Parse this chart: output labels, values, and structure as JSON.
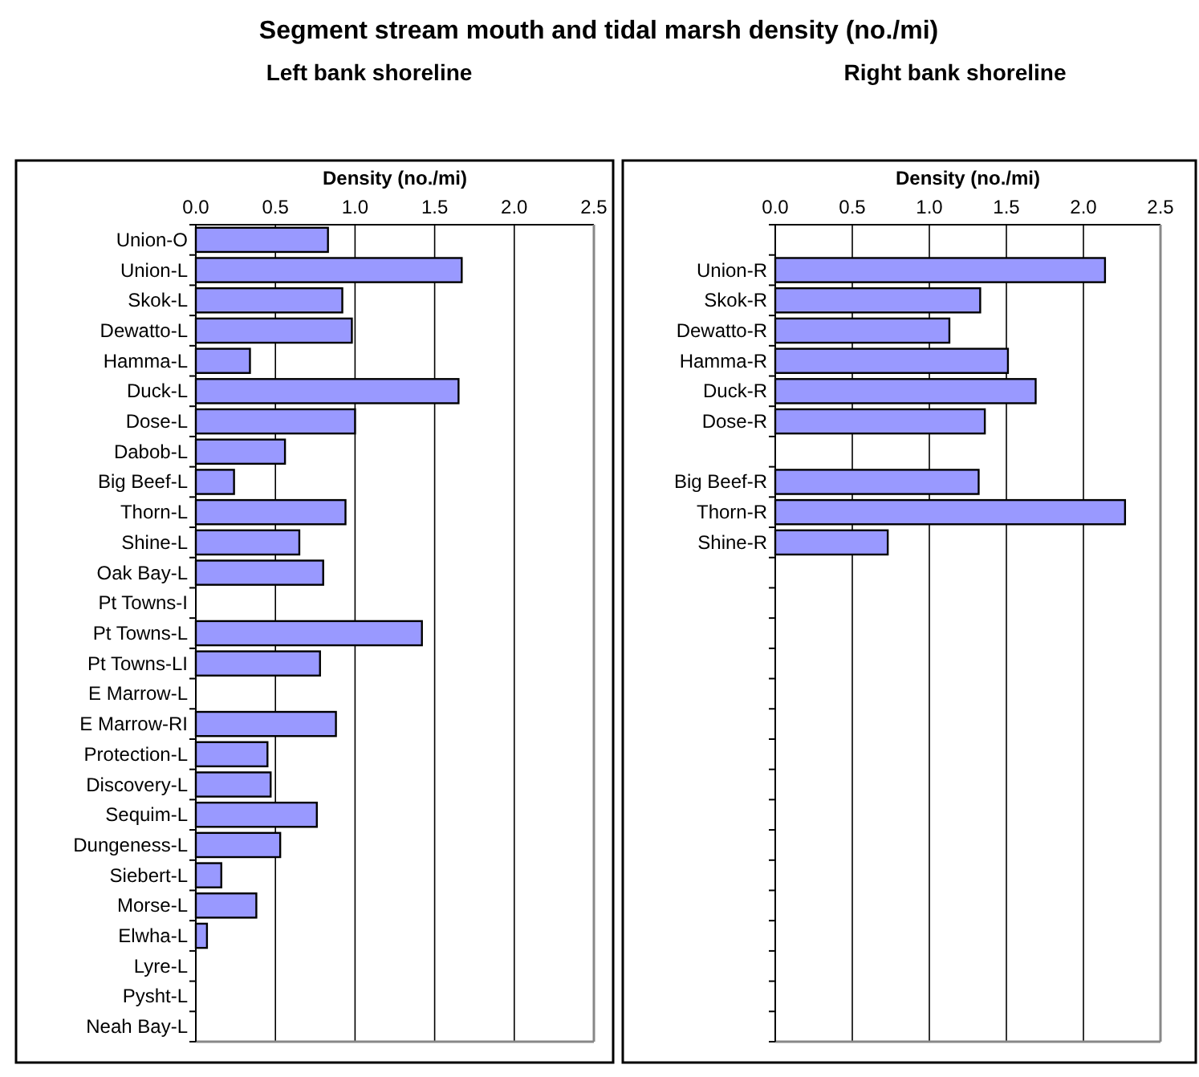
{
  "chart_data": [
    {
      "type": "bar",
      "orientation": "horizontal",
      "title": "Segment stream mouth and tidal marsh density (no./mi)",
      "subtitle": "Left bank shoreline",
      "xlabel": "Density (no./mi)",
      "categories": [
        "Union-O",
        "Union-L",
        "Skok-L",
        "Dewatto-L",
        "Hamma-L",
        "Duck-L",
        "Dose-L",
        "Dabob-L",
        "Big Beef-L",
        "Thorn-L",
        "Shine-L",
        "Oak Bay-L",
        "Pt Towns-I",
        "Pt Towns-L",
        "Pt Towns-LI",
        "E Marrow-L",
        "E Marrow-RI",
        "Protection-L",
        "Discovery-L",
        "Sequim-L",
        "Dungeness-L",
        "Siebert-L",
        "Morse-L",
        "Elwha-L",
        "Lyre-L",
        "Pysht-L",
        "Neah Bay-L"
      ],
      "values": [
        0.83,
        1.67,
        0.92,
        0.98,
        0.34,
        1.65,
        1.0,
        0.56,
        0.24,
        0.94,
        0.65,
        0.8,
        null,
        1.42,
        0.78,
        null,
        0.88,
        0.45,
        0.47,
        0.76,
        0.53,
        0.16,
        0.38,
        0.07,
        null,
        null,
        null
      ],
      "color": "#9999ff",
      "xlim": [
        0,
        2.5
      ],
      "xticks": [
        {
          "value": 0,
          "label": "0.0"
        },
        {
          "value": 0.5,
          "label": "0.5"
        },
        {
          "value": 1,
          "label": "1.0"
        },
        {
          "value": 1.5,
          "label": "1.5"
        },
        {
          "value": 2,
          "label": "2.0"
        },
        {
          "value": 2.5,
          "label": "2.5"
        }
      ],
      "grid": "x"
    },
    {
      "type": "bar",
      "orientation": "horizontal",
      "subtitle": "Right bank shoreline",
      "xlabel": "Density (no./mi)",
      "categories": [
        null,
        "Union-R",
        "Skok-R",
        "Dewatto-R",
        "Hamma-R",
        "Duck-R",
        "Dose-R",
        null,
        "Big Beef-R",
        "Thorn-R",
        "Shine-R",
        null,
        null,
        null,
        null,
        null,
        null,
        null,
        null,
        null,
        null,
        null,
        null,
        null,
        null,
        null,
        null
      ],
      "values": [
        null,
        2.14,
        1.33,
        1.13,
        1.51,
        1.69,
        1.36,
        null,
        1.32,
        2.27,
        0.73,
        null,
        null,
        null,
        null,
        null,
        null,
        null,
        null,
        null,
        null,
        null,
        null,
        null,
        null,
        null,
        null
      ],
      "color": "#9999ff",
      "xlim": [
        0,
        2.5
      ],
      "xticks": [
        {
          "value": 0,
          "label": "0.0"
        },
        {
          "value": 0.5,
          "label": "0.5"
        },
        {
          "value": 1,
          "label": "1.0"
        },
        {
          "value": 1.5,
          "label": "1.5"
        },
        {
          "value": 2,
          "label": "2.0"
        },
        {
          "value": 2.5,
          "label": "2.5"
        }
      ],
      "grid": "x"
    }
  ]
}
